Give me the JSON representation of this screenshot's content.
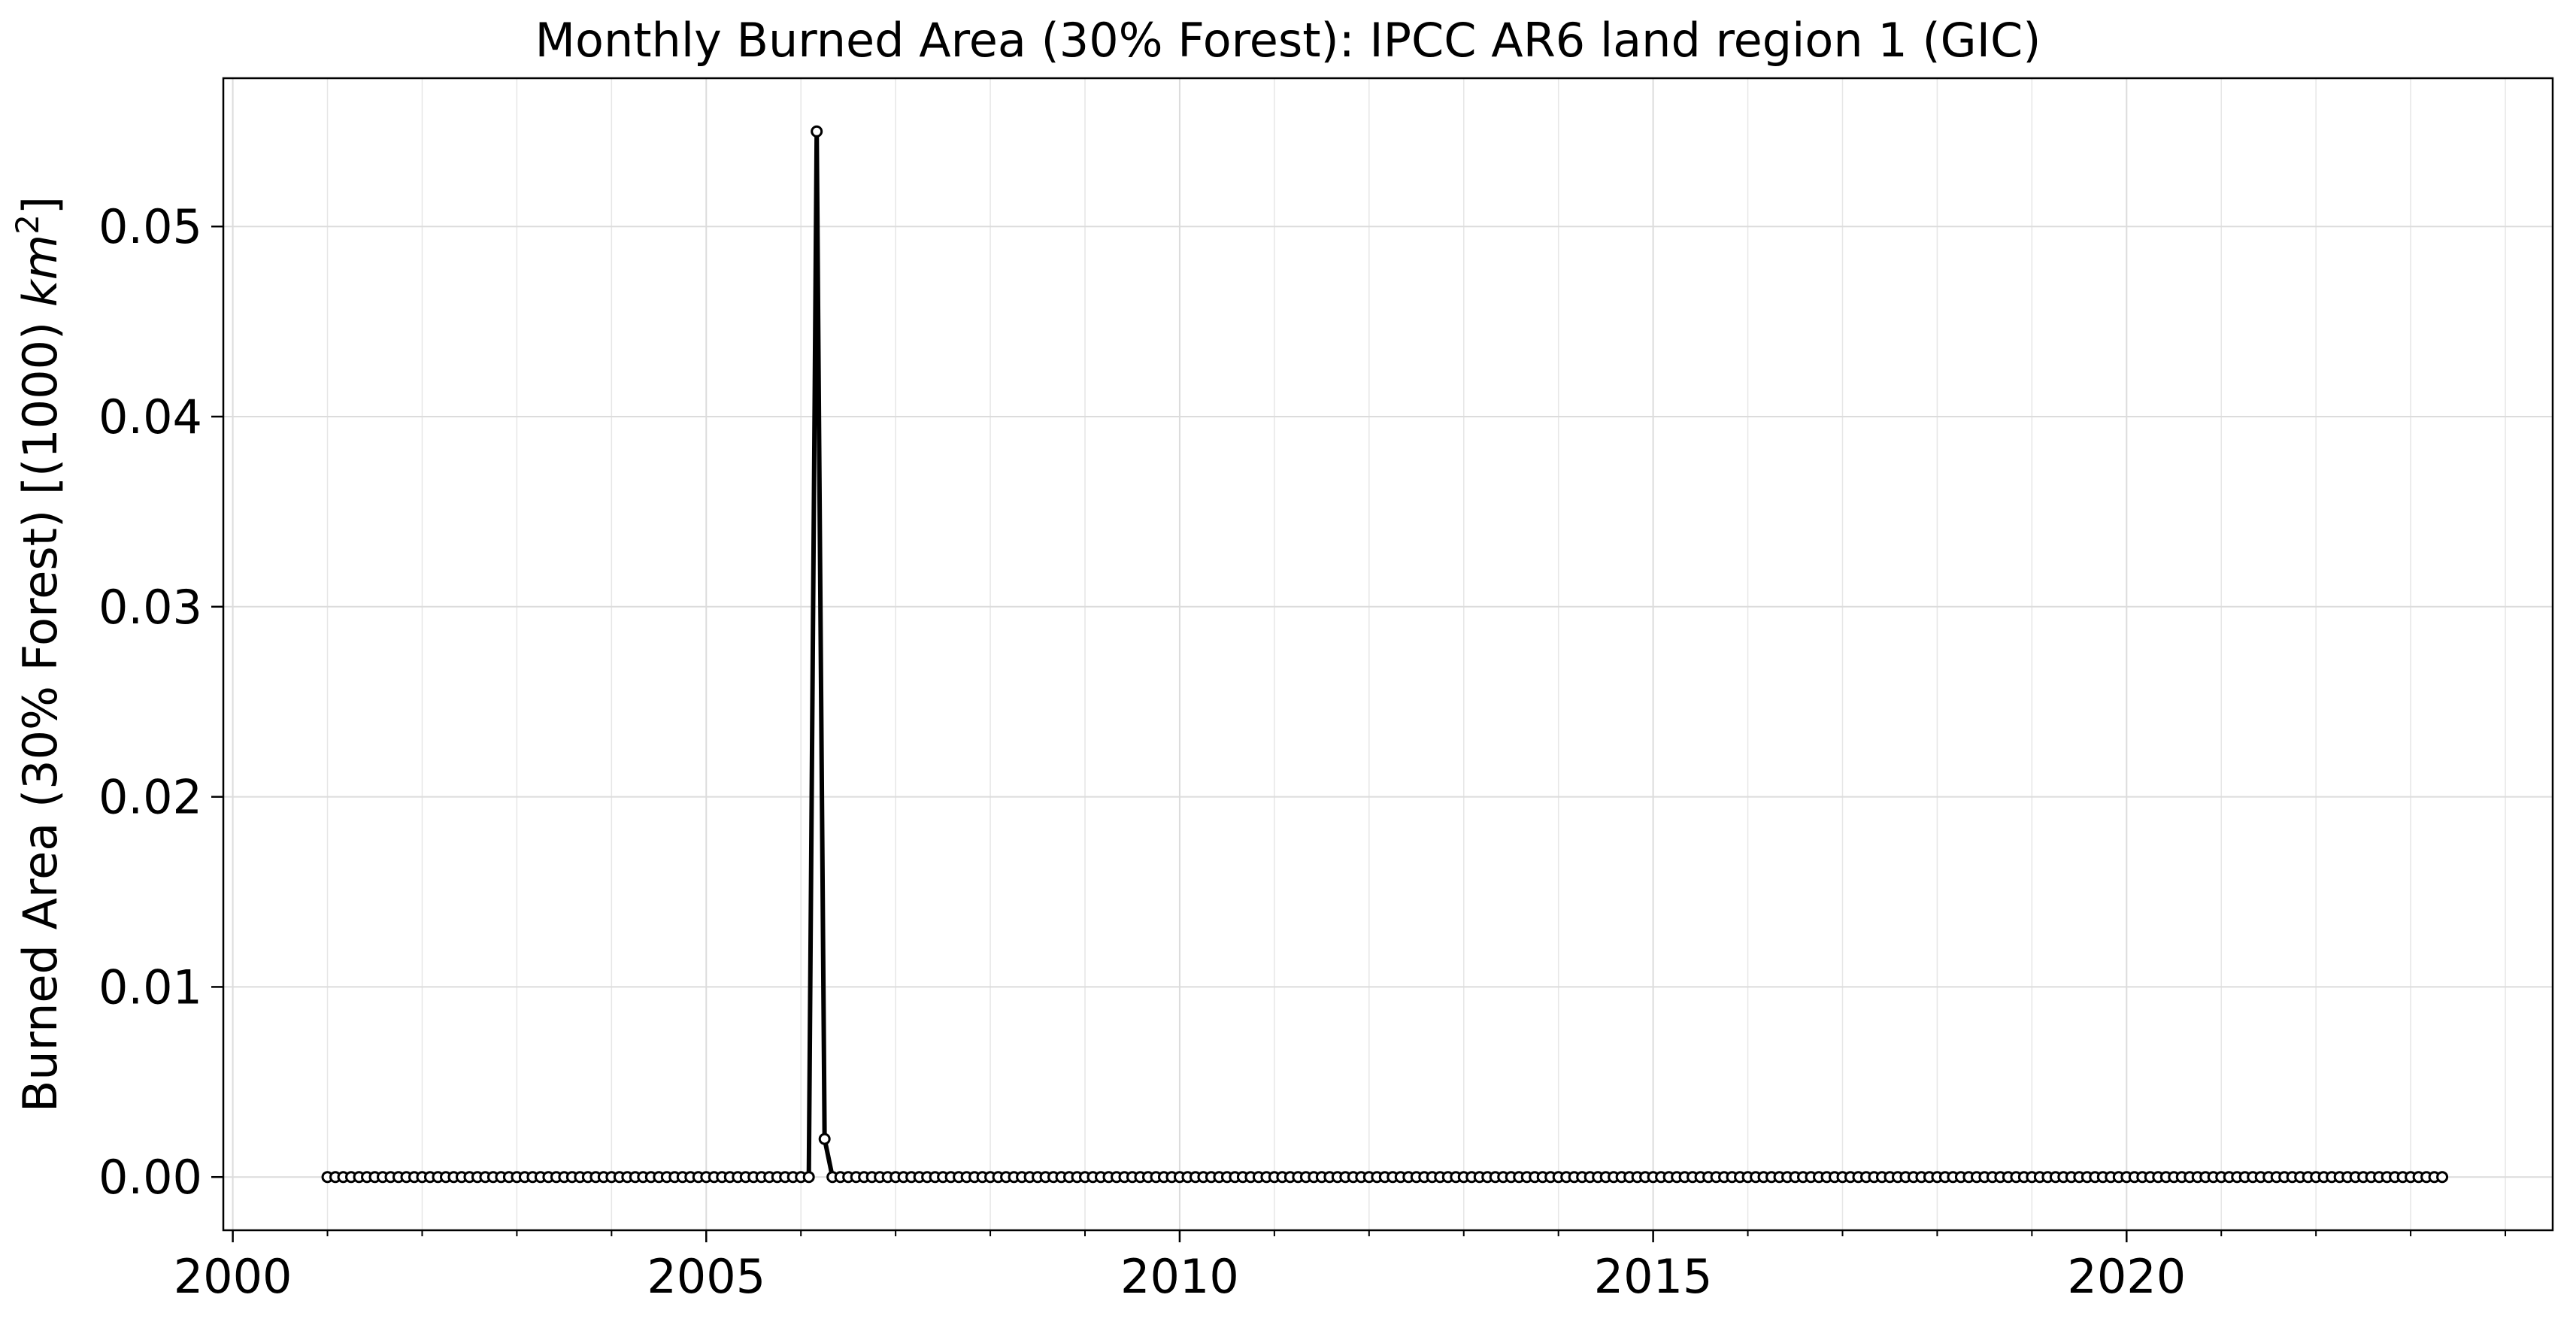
{
  "chart_data": {
    "type": "line",
    "title": "Monthly Burned Area (30% Forest): IPCC AR6 land region 1 (GIC)",
    "xlabel": "",
    "ylabel_main": "Burned Area (30% Forest) [(1000) ",
    "ylabel_unit": "km",
    "ylabel_exp": "2",
    "ylabel_close": "]",
    "xlim": [
      1999.9,
      2024.5
    ],
    "ylim": [
      -0.0028,
      0.0578
    ],
    "x_ticks": [
      2000,
      2005,
      2010,
      2015,
      2020
    ],
    "x_tick_labels": [
      "2000",
      "2005",
      "2010",
      "2015",
      "2020"
    ],
    "y_ticks": [
      0.0,
      0.01,
      0.02,
      0.03,
      0.04,
      0.05
    ],
    "y_tick_labels": [
      "0.00",
      "0.01",
      "0.02",
      "0.03",
      "0.04",
      "0.05"
    ],
    "grid": true,
    "marker": "circle-open",
    "line_color": "#000000",
    "series": [
      {
        "start_year": 2001,
        "start_month": 1,
        "end_year": 2023,
        "end_month": 5,
        "default_value": 0.0,
        "nonzero": [
          {
            "date": "2006-03",
            "value": 0.055
          },
          {
            "date": "2006-04",
            "value": 0.002
          }
        ]
      }
    ]
  }
}
